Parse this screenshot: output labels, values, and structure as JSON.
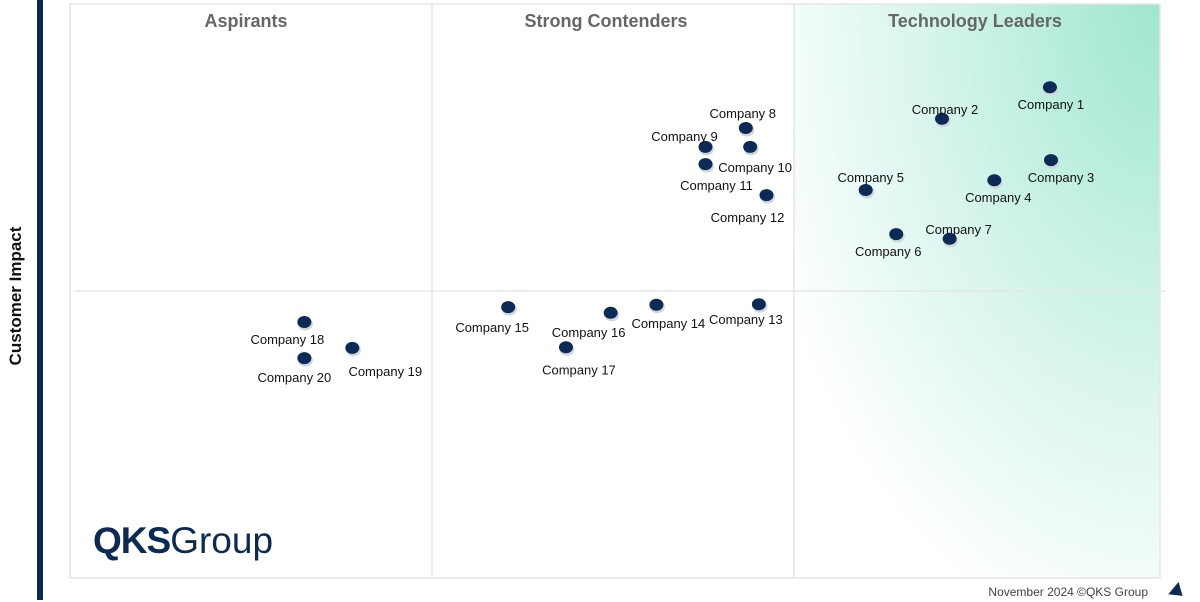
{
  "chart_data": {
    "type": "scatter",
    "title": "",
    "xlabel": "",
    "ylabel": "Customer Impact",
    "xlim": [
      0,
      100
    ],
    "ylim": [
      0,
      100
    ],
    "quadrants": [
      "Aspirants",
      "Strong Contenders",
      "Technology Leaders"
    ],
    "grid": false,
    "colors": {
      "point": "#0b2a55",
      "leader_gradient": "#9ee6d0",
      "axis": "#0b2a55"
    },
    "points": [
      {
        "name": "Company 1",
        "x": 89.9,
        "y": 85.5
      },
      {
        "name": "Company 2",
        "x": 80.0,
        "y": 80.0
      },
      {
        "name": "Company 3",
        "x": 90.0,
        "y": 72.8
      },
      {
        "name": "Company 4",
        "x": 84.8,
        "y": 69.3
      },
      {
        "name": "Company 5",
        "x": 73.0,
        "y": 67.6
      },
      {
        "name": "Company 6",
        "x": 75.8,
        "y": 59.9
      },
      {
        "name": "Company 7",
        "x": 80.7,
        "y": 59.1
      },
      {
        "name": "Company 8",
        "x": 62.0,
        "y": 78.4
      },
      {
        "name": "Company 9",
        "x": 58.3,
        "y": 75.1
      },
      {
        "name": "Company 10",
        "x": 62.4,
        "y": 75.1
      },
      {
        "name": "Company 11",
        "x": 58.3,
        "y": 72.1
      },
      {
        "name": "Company 12",
        "x": 63.9,
        "y": 66.7
      },
      {
        "name": "Company 13",
        "x": 63.2,
        "y": 47.7
      },
      {
        "name": "Company 14",
        "x": 53.8,
        "y": 47.6
      },
      {
        "name": "Company 15",
        "x": 40.2,
        "y": 47.2
      },
      {
        "name": "Company 16",
        "x": 49.6,
        "y": 46.2
      },
      {
        "name": "Company 17",
        "x": 45.5,
        "y": 40.2
      },
      {
        "name": "Company 18",
        "x": 21.5,
        "y": 44.6
      },
      {
        "name": "Company 19",
        "x": 25.9,
        "y": 40.1
      },
      {
        "name": "Company 20",
        "x": 21.5,
        "y": 38.3
      }
    ]
  },
  "logo": {
    "bold": "QKS",
    "light": "Group"
  },
  "footer": "November 2024 ©QKS Group"
}
